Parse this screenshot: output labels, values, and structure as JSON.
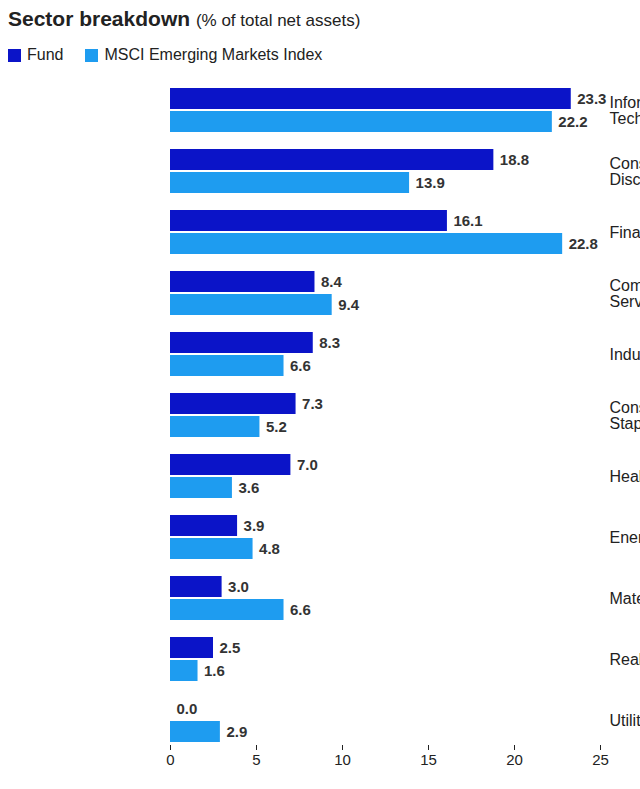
{
  "chart_data": {
    "type": "bar",
    "orientation": "horizontal",
    "title": "Sector breakdown",
    "subtitle": "(% of total net assets)",
    "categories": [
      "Information Technology",
      "Consumer Discretionary",
      "Financials",
      "Communication Services",
      "Industrials",
      "Consumer Staples",
      "Health Care",
      "Energy",
      "Materials",
      "Real Estate",
      "Utilities"
    ],
    "series": [
      {
        "name": "Fund",
        "color": "#0b14c8",
        "values": [
          23.3,
          18.8,
          16.1,
          8.4,
          8.3,
          7.3,
          7.0,
          3.9,
          3.0,
          2.5,
          0.0
        ],
        "value_labels": [
          "23.3",
          "18.8",
          "16.1",
          "8.4",
          "8.3",
          "7.3",
          "7.0",
          "3.9",
          "3.0",
          "2.5",
          "0.0"
        ]
      },
      {
        "name": "MSCI Emerging Markets Index",
        "color": "#1e9cf0",
        "values": [
          22.2,
          13.9,
          22.8,
          9.4,
          6.6,
          5.2,
          3.6,
          4.8,
          6.6,
          1.6,
          2.9
        ],
        "value_labels": [
          "22.2",
          "13.9",
          "22.8",
          "9.4",
          "6.6",
          "5.2",
          "3.6",
          "4.8",
          "6.6",
          "1.6",
          "2.9"
        ]
      }
    ],
    "xlim": [
      0,
      25
    ],
    "xticks": [
      0,
      5,
      10,
      15,
      20,
      25
    ],
    "grid": false,
    "legend": "top-left",
    "data_labels": true
  }
}
